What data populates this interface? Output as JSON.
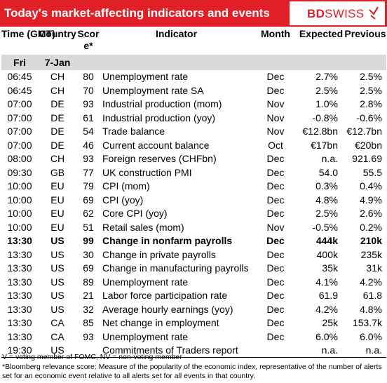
{
  "header": {
    "title": "Today's market-affecting indicators and events",
    "logo_bold": "BD",
    "logo_light": "SWISS"
  },
  "columns": {
    "time": "Time (GMT)",
    "country": "Country",
    "score": "Score*",
    "indicator": "Indicator",
    "month": "Month",
    "expected": "Expected",
    "previous": "Previous"
  },
  "date_row": {
    "day": "Fri",
    "date": "7-Jan"
  },
  "rows": [
    {
      "time": "06:45",
      "country": "CH",
      "score": "80",
      "indicator": "Unemployment rate",
      "month": "Dec",
      "expected": "2.7%",
      "previous": "2.5%"
    },
    {
      "time": "06:45",
      "country": "CH",
      "score": "70",
      "indicator": "Unemployment rate SA",
      "month": "Dec",
      "expected": "2.5%",
      "previous": "2.5%"
    },
    {
      "time": "07:00",
      "country": "DE",
      "score": "93",
      "indicator": "Industrial production (mom)",
      "month": "Nov",
      "expected": "1.0%",
      "previous": "2.8%"
    },
    {
      "time": "07:00",
      "country": "DE",
      "score": "61",
      "indicator": "Industrial production (yoy)",
      "month": "Nov",
      "expected": "-0.8%",
      "previous": "-0.6%"
    },
    {
      "time": "07:00",
      "country": "DE",
      "score": "54",
      "indicator": "Trade balance",
      "month": "Nov",
      "expected": "€12.8bn",
      "previous": "€12.7bn"
    },
    {
      "time": "07:00",
      "country": "DE",
      "score": "46",
      "indicator": "Current account balance",
      "month": "Oct",
      "expected": "€17bn",
      "previous": "€20bn"
    },
    {
      "time": "08:00",
      "country": "CH",
      "score": "93",
      "indicator": "Foreign reserves (CHFbn)",
      "month": "Dec",
      "expected": "n.a.",
      "previous": "921.69"
    },
    {
      "time": "09:30",
      "country": "GB",
      "score": "77",
      "indicator": "UK construction PMI",
      "month": "Dec",
      "expected": "54.0",
      "previous": "55.5"
    },
    {
      "time": "10:00",
      "country": "EU",
      "score": "79",
      "indicator": "CPI (mom)",
      "month": "Dec",
      "expected": "0.3%",
      "previous": "0.4%"
    },
    {
      "time": "10:00",
      "country": "EU",
      "score": "69",
      "indicator": "CPI (yoy)",
      "month": "Dec",
      "expected": "4.8%",
      "previous": "4.9%"
    },
    {
      "time": "10:00",
      "country": "EU",
      "score": "62",
      "indicator": "Core CPI (yoy)",
      "month": "Dec",
      "expected": "2.5%",
      "previous": "2.6%"
    },
    {
      "time": "10:00",
      "country": "EU",
      "score": "51",
      "indicator": "Retail sales (mom)",
      "month": "Nov",
      "expected": "-0.5%",
      "previous": "0.2%"
    },
    {
      "time": "13:30",
      "country": "US",
      "score": "99",
      "indicator": "Change in nonfarm payrolls",
      "month": "Dec",
      "expected": "444k",
      "previous": "210k",
      "bold": true
    },
    {
      "time": "13:30",
      "country": "US",
      "score": "30",
      "indicator": "Change in private payrolls",
      "month": "Dec",
      "expected": "400k",
      "previous": "235k"
    },
    {
      "time": "13:30",
      "country": "US",
      "score": "69",
      "indicator": "Change in manufacturing payrolls",
      "month": "Dec",
      "expected": "35k",
      "previous": "31k"
    },
    {
      "time": "13:30",
      "country": "US",
      "score": "89",
      "indicator": "Unemployment rate",
      "month": "Dec",
      "expected": "4.1%",
      "previous": "4.2%"
    },
    {
      "time": "13:30",
      "country": "US",
      "score": "21",
      "indicator": "Labor force participation rate",
      "month": "Dec",
      "expected": "61.9",
      "previous": "61.8"
    },
    {
      "time": "13:30",
      "country": "US",
      "score": "32",
      "indicator": "Average hourly earnings (yoy)",
      "month": "Dec",
      "expected": "4.2%",
      "previous": "4.8%"
    },
    {
      "time": "13:30",
      "country": "CA",
      "score": "85",
      "indicator": "Net change in employment",
      "month": "Dec",
      "expected": "25k",
      "previous": "153.7k"
    },
    {
      "time": "13:30",
      "country": "CA",
      "score": "93",
      "indicator": "Unemployment rate",
      "month": "Dec",
      "expected": "6.0%",
      "previous": "6.0%"
    },
    {
      "time": "19:30",
      "country": "US",
      "score": "",
      "indicator": "Commitments of Traders  report",
      "month": "",
      "expected": "n.a.",
      "previous": "n.a."
    }
  ],
  "footnotes": {
    "line1": "V = voting member of FOMC, NV = non-voting member",
    "line2": "*Bloomberg relevance score:  Measure of the popularity of the economic index, representative of the number of alerts set for an economic event relative to all alerts set for all events in that country."
  },
  "colors": {
    "brand_red": "#e01f26",
    "subheader_gray": "#d9d9d9"
  }
}
